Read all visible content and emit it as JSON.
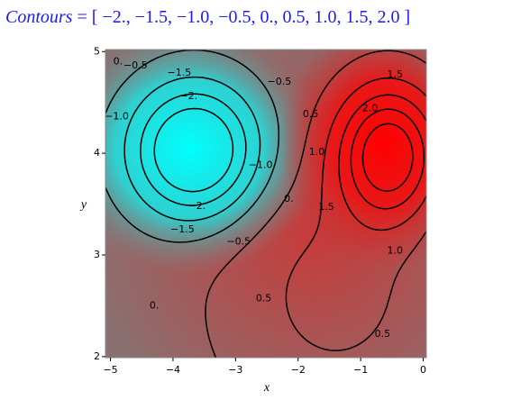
{
  "chart_data": {
    "type": "contour",
    "title": "Contours",
    "title_open": "= [",
    "title_close": "]",
    "levels": [
      {
        "value": -2,
        "label": "−2."
      },
      {
        "value": -1.5,
        "label": "−1.5"
      },
      {
        "value": -1,
        "label": "−1.0"
      },
      {
        "value": -0.5,
        "label": "−0.5"
      },
      {
        "value": 0,
        "label": "0."
      },
      {
        "value": 0.5,
        "label": "0.5"
      },
      {
        "value": 1,
        "label": "1.0"
      },
      {
        "value": 1.5,
        "label": "1.5"
      },
      {
        "value": 2,
        "label": "2.0"
      }
    ],
    "x_label": "x",
    "y_label": "y",
    "xlim": [
      -5.08,
      0.05
    ],
    "ylim": [
      1.99,
      5.02
    ],
    "xticks": [
      {
        "value": -5,
        "label": "−5"
      },
      {
        "value": -4,
        "label": "−4"
      },
      {
        "value": -3,
        "label": "−3"
      },
      {
        "value": -2,
        "label": "−2"
      },
      {
        "value": -1,
        "label": "−1"
      },
      0
    ],
    "yticks": [
      2,
      3,
      4,
      5
    ]
  }
}
